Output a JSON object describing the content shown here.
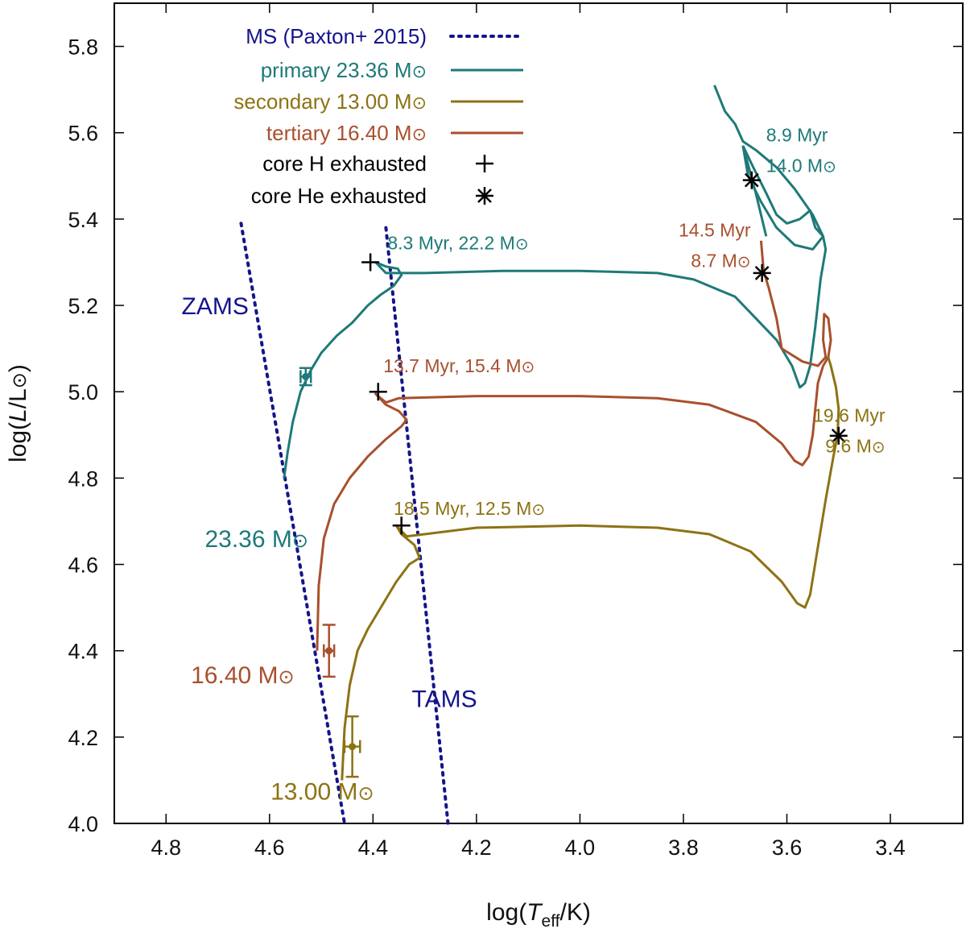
{
  "colors": {
    "ms": "#14148c",
    "primary": "#1e7a78",
    "secondary": "#8c7314",
    "tertiary": "#a8502e",
    "marker": "#000000",
    "axis": "#000000"
  },
  "chart_data": {
    "type": "line",
    "xlabel": "log(T_eff/K)",
    "ylabel": "log(L/L_sun)",
    "xlim": [
      4.9,
      3.26
    ],
    "ylim": [
      4.0,
      5.9
    ],
    "x_ticks": [
      "4.8",
      "4.6",
      "4.4",
      "4.2",
      "4.0",
      "3.8",
      "3.6",
      "3.4"
    ],
    "y_ticks": [
      "4.0",
      "4.2",
      "4.4",
      "4.6",
      "4.8",
      "5.0",
      "5.2",
      "5.4",
      "5.6",
      "5.8"
    ],
    "legend": {
      "placement": "top",
      "entries": [
        {
          "key": "ms",
          "label": "MS (Paxton+ 2015)",
          "style": "dotted"
        },
        {
          "key": "primary",
          "label": "primary 23.36 M",
          "style": "solid",
          "suffix": "sun"
        },
        {
          "key": "secondary",
          "label": "secondary 13.00 M",
          "style": "solid",
          "suffix": "sun"
        },
        {
          "key": "tertiary",
          "label": "tertiary 16.40 M",
          "style": "solid",
          "suffix": "sun"
        },
        {
          "key": "marker",
          "label": "core H exhausted",
          "style": "plus"
        },
        {
          "key": "marker",
          "label": "core He exhausted",
          "style": "asterisk"
        }
      ]
    },
    "ms_lines": [
      {
        "name": "ZAMS",
        "points": [
          [
            4.655,
            5.39
          ],
          [
            4.455,
            4.0
          ]
        ]
      },
      {
        "name": "TAMS",
        "points": [
          [
            4.375,
            5.38
          ],
          [
            4.255,
            4.0
          ]
        ]
      }
    ],
    "ms_labels": [
      {
        "text": "ZAMS",
        "x": 4.77,
        "y": 5.18
      },
      {
        "text": "TAMS",
        "x": 4.325,
        "y": 4.27
      }
    ],
    "series": [
      {
        "name": "primary",
        "colorKey": "primary",
        "points": [
          [
            4.572,
            4.8
          ],
          [
            4.565,
            4.86
          ],
          [
            4.555,
            4.93
          ],
          [
            4.54,
            5.0
          ],
          [
            4.52,
            5.05
          ],
          [
            4.5,
            5.09
          ],
          [
            4.47,
            5.13
          ],
          [
            4.44,
            5.16
          ],
          [
            4.41,
            5.2
          ],
          [
            4.385,
            5.225
          ],
          [
            4.36,
            5.245
          ],
          [
            4.345,
            5.27
          ],
          [
            4.352,
            5.285
          ],
          [
            4.375,
            5.29
          ],
          [
            4.395,
            5.3
          ],
          [
            4.375,
            5.275
          ],
          [
            4.3,
            5.275
          ],
          [
            4.15,
            5.28
          ],
          [
            4.0,
            5.28
          ],
          [
            3.85,
            5.275
          ],
          [
            3.78,
            5.26
          ],
          [
            3.7,
            5.22
          ],
          [
            3.66,
            5.17
          ],
          [
            3.62,
            5.12
          ],
          [
            3.59,
            5.06
          ],
          [
            3.575,
            5.01
          ],
          [
            3.565,
            5.02
          ],
          [
            3.555,
            5.06
          ],
          [
            3.545,
            5.15
          ],
          [
            3.535,
            5.26
          ],
          [
            3.525,
            5.33
          ],
          [
            3.53,
            5.36
          ],
          [
            3.55,
            5.41
          ],
          [
            3.585,
            5.47
          ],
          [
            3.62,
            5.52
          ],
          [
            3.66,
            5.56
          ],
          [
            3.685,
            5.58
          ],
          [
            3.7,
            5.62
          ],
          [
            3.72,
            5.65
          ],
          [
            3.74,
            5.71
          ]
        ],
        "loop": [
          [
            3.685,
            5.57
          ],
          [
            3.665,
            5.52
          ],
          [
            3.64,
            5.46
          ],
          [
            3.62,
            5.41
          ],
          [
            3.6,
            5.39
          ],
          [
            3.575,
            5.4
          ],
          [
            3.555,
            5.42
          ],
          [
            3.545,
            5.38
          ],
          [
            3.53,
            5.36
          ],
          [
            3.55,
            5.33
          ],
          [
            3.585,
            5.34
          ],
          [
            3.62,
            5.38
          ],
          [
            3.65,
            5.44
          ],
          [
            3.675,
            5.5
          ],
          [
            3.685,
            5.57
          ]
        ],
        "branch": [
          [
            3.685,
            5.57
          ],
          [
            3.66,
            5.46
          ],
          [
            3.64,
            5.36
          ]
        ],
        "tip": {
          "x": 4.53,
          "y": 5.035,
          "xerr": 0.01,
          "yerr": 0.02
        },
        "start_label": {
          "lines": [
            "23.36 M"
          ],
          "x": 4.725,
          "y": 4.64
        }
      },
      {
        "name": "tertiary",
        "colorKey": "tertiary",
        "points": [
          [
            4.508,
            4.4
          ],
          [
            4.505,
            4.55
          ],
          [
            4.495,
            4.66
          ],
          [
            4.475,
            4.74
          ],
          [
            4.445,
            4.8
          ],
          [
            4.41,
            4.85
          ],
          [
            4.375,
            4.89
          ],
          [
            4.345,
            4.92
          ],
          [
            4.335,
            4.935
          ],
          [
            4.35,
            4.955
          ],
          [
            4.375,
            4.97
          ],
          [
            4.395,
            4.995
          ],
          [
            4.375,
            4.975
          ],
          [
            4.35,
            4.985
          ],
          [
            4.2,
            4.99
          ],
          [
            4.0,
            4.99
          ],
          [
            3.85,
            4.985
          ],
          [
            3.75,
            4.97
          ],
          [
            3.66,
            4.93
          ],
          [
            3.61,
            4.88
          ],
          [
            3.585,
            4.84
          ],
          [
            3.57,
            4.83
          ],
          [
            3.558,
            4.85
          ],
          [
            3.55,
            4.9
          ],
          [
            3.545,
            4.96
          ],
          [
            3.54,
            5.02
          ],
          [
            3.53,
            5.06
          ],
          [
            3.52,
            5.08
          ],
          [
            3.515,
            5.12
          ],
          [
            3.52,
            5.17
          ],
          [
            3.528,
            5.18
          ],
          [
            3.53,
            5.12
          ],
          [
            3.525,
            5.08
          ],
          [
            3.54,
            5.06
          ],
          [
            3.57,
            5.07
          ],
          [
            3.61,
            5.1
          ],
          [
            3.62,
            5.17
          ],
          [
            3.635,
            5.24
          ],
          [
            3.645,
            5.28
          ],
          [
            3.65,
            5.35
          ]
        ],
        "tip": {
          "x": 4.485,
          "y": 4.4,
          "xerr": 0.01,
          "yerr": 0.06
        },
        "start_label": {
          "lines": [
            "16.40 M"
          ],
          "x": 4.752,
          "y": 4.325
        }
      },
      {
        "name": "secondary",
        "colorKey": "secondary",
        "points": [
          [
            4.46,
            4.1
          ],
          [
            4.455,
            4.22
          ],
          [
            4.445,
            4.32
          ],
          [
            4.43,
            4.4
          ],
          [
            4.41,
            4.45
          ],
          [
            4.385,
            4.5
          ],
          [
            4.355,
            4.56
          ],
          [
            4.33,
            4.6
          ],
          [
            4.31,
            4.615
          ],
          [
            4.32,
            4.645
          ],
          [
            4.345,
            4.67
          ],
          [
            4.355,
            4.69
          ],
          [
            4.335,
            4.665
          ],
          [
            4.3,
            4.67
          ],
          [
            4.2,
            4.685
          ],
          [
            4.0,
            4.69
          ],
          [
            3.85,
            4.685
          ],
          [
            3.75,
            4.67
          ],
          [
            3.67,
            4.63
          ],
          [
            3.61,
            4.56
          ],
          [
            3.58,
            4.51
          ],
          [
            3.565,
            4.5
          ],
          [
            3.555,
            4.53
          ],
          [
            3.54,
            4.64
          ],
          [
            3.525,
            4.75
          ],
          [
            3.51,
            4.85
          ],
          [
            3.502,
            4.9
          ],
          [
            3.5,
            4.96
          ],
          [
            3.505,
            5.01
          ],
          [
            3.515,
            5.06
          ],
          [
            3.52,
            5.08
          ]
        ],
        "tip": {
          "x": 4.44,
          "y": 4.178,
          "xerr": 0.015,
          "yerr": 0.07
        },
        "start_label": {
          "lines": [
            "13.00 M"
          ],
          "x": 4.598,
          "y": 4.055
        }
      }
    ],
    "h_exhausted": [
      {
        "x": 4.405,
        "y": 5.3
      },
      {
        "x": 4.39,
        "y": 5.0
      },
      {
        "x": 4.345,
        "y": 4.69
      }
    ],
    "he_exhausted": [
      {
        "x": 3.668,
        "y": 5.49
      },
      {
        "x": 3.648,
        "y": 5.275
      },
      {
        "x": 3.5,
        "y": 4.898
      }
    ],
    "annotations": [
      {
        "lines": [
          "8.3 Myr,  22.2 M"
        ],
        "x": 4.372,
        "y": 5.33,
        "colorKey": "primary",
        "anchor": "start",
        "sun": true
      },
      {
        "lines": [
          "13.7 Myr, 15.4 M"
        ],
        "x": 4.38,
        "y": 5.045,
        "colorKey": "tertiary",
        "anchor": "start",
        "sun": true
      },
      {
        "lines": [
          "18.5 Myr, 12.5 M"
        ],
        "x": 4.36,
        "y": 4.715,
        "colorKey": "secondary",
        "anchor": "start",
        "sun": true
      },
      {
        "lines": [
          "8.9 Myr",
          "14.0 M"
        ],
        "x": 3.64,
        "y": 5.58,
        "colorKey": "primary",
        "anchor": "start",
        "sun": true
      },
      {
        "lines": [
          "14.5 Myr",
          "8.7 M"
        ],
        "x": 3.67,
        "y": 5.36,
        "colorKey": "tertiary",
        "anchor": "end",
        "sun": true
      },
      {
        "lines": [
          "19.6 Myr",
          "9.6 M"
        ],
        "x": 3.41,
        "y": 4.93,
        "colorKey": "secondary",
        "anchor": "end",
        "sun": true
      }
    ]
  }
}
